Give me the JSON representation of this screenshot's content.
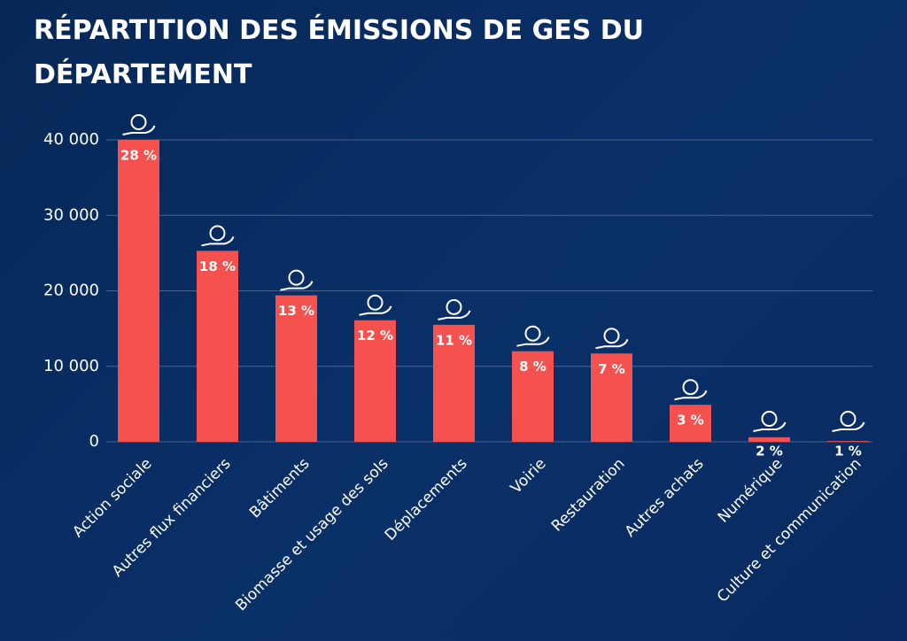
{
  "chart_data": {
    "type": "bar",
    "title": "RÉPARTITION DES ÉMISSIONS DE GES DU DÉPARTEMENT",
    "categories": [
      "Action sociale",
      "Autres flux financiers",
      "Bâtiments",
      "Biomasse et usage des sols",
      "Déplacements",
      "Voirie",
      "Restauration",
      "Autres achats",
      "Numérique",
      "Culture et communication"
    ],
    "values": [
      40000,
      25300,
      19400,
      16100,
      15500,
      12000,
      11700,
      4900,
      600,
      100
    ],
    "percentages": [
      28,
      18,
      13,
      12,
      11,
      8,
      7,
      3,
      2,
      1
    ],
    "percentage_labels": [
      "28 %",
      "18 %",
      "13 %",
      "12 %",
      "11 %",
      "8 %",
      "7 %",
      "3 %",
      "2 %",
      "1 %"
    ],
    "color": "#f5524f",
    "ylim": [
      0,
      40000
    ],
    "yticks": [
      0,
      {
        "value": 10000,
        "label": "10 000"
      },
      {
        "value": 20000,
        "label": "20 000"
      },
      {
        "value": 30000,
        "label": "30 000"
      },
      {
        "value": 40000,
        "label": "40 000"
      }
    ],
    "grid": true
  }
}
